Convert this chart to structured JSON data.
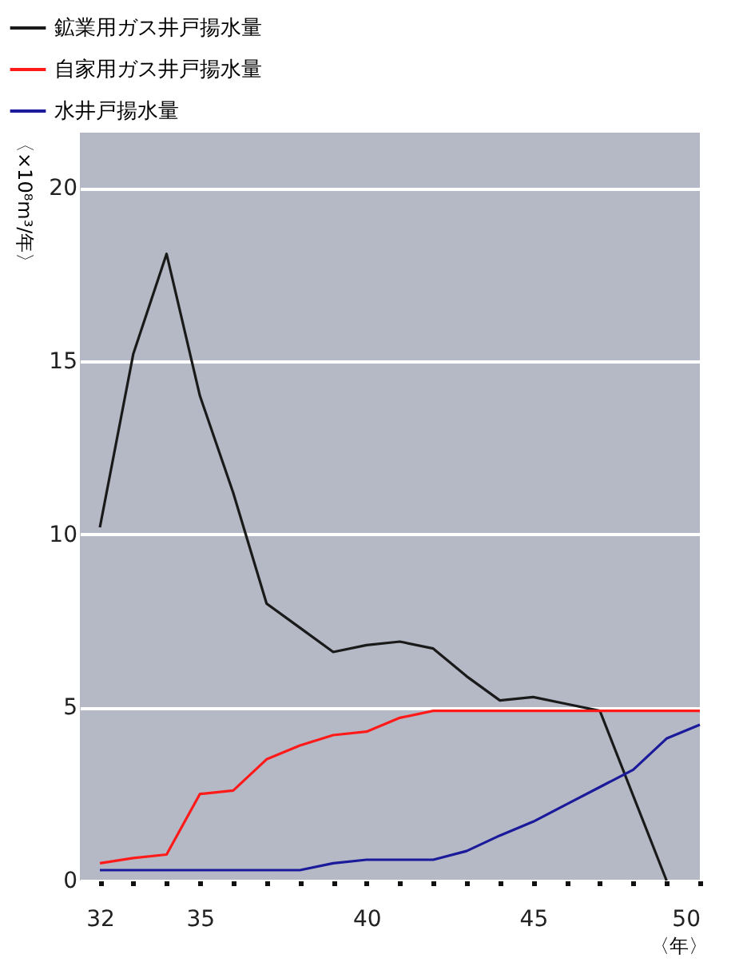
{
  "chart_data": {
    "type": "line",
    "ylabel": "〈×10⁸m³/年〉",
    "xlabel": "〈年〉",
    "xlim": [
      31.4,
      50
    ],
    "xticks": [
      32,
      {
        "value": 33,
        "label": null
      },
      {
        "value": 34,
        "label": null
      },
      35,
      {
        "value": 36,
        "label": null
      },
      {
        "value": 37,
        "label": null
      },
      {
        "value": 38,
        "label": null
      },
      {
        "value": 39,
        "label": null
      },
      40,
      {
        "value": 41,
        "label": null
      },
      {
        "value": 42,
        "label": null
      },
      {
        "value": 43,
        "label": null
      },
      {
        "value": 44,
        "label": null
      },
      45,
      {
        "value": 46,
        "label": null
      },
      {
        "value": 47,
        "label": null
      },
      {
        "value": 48,
        "label": null
      },
      {
        "value": 49,
        "label": null
      },
      50
    ],
    "ylim": [
      0,
      21.6
    ],
    "yticks": [
      0,
      5,
      10,
      15,
      20
    ],
    "grid": "y",
    "legend": "top left",
    "marker": "none",
    "line_style": "solid",
    "series": [
      {
        "name": "鉱業用ガス井戸揚水量",
        "color": "#1a1a1a",
        "x": [
          32,
          33,
          34,
          35,
          36,
          37,
          38,
          39,
          40,
          41,
          42,
          43,
          44,
          45,
          46,
          47,
          49
        ],
        "values": [
          10.2,
          15.2,
          18.1,
          14,
          11.2,
          8,
          7.3,
          6.6,
          6.8,
          6.9,
          6.7,
          5.9,
          5.2,
          5.3,
          5.1,
          4.9,
          0
        ]
      },
      {
        "name": "自家用ガス井戸揚水量",
        "color": "#ff1a1a",
        "x": [
          32,
          33,
          34,
          35,
          36,
          37,
          38,
          39,
          40,
          41,
          42,
          43,
          44,
          45,
          46,
          47,
          48,
          49,
          50
        ],
        "values": [
          0.5,
          0.65,
          0.75,
          2.5,
          2.6,
          3.5,
          3.9,
          4.2,
          4.3,
          4.7,
          4.9,
          4.9,
          4.9,
          4.9,
          4.9,
          4.9,
          4.9,
          4.9,
          4.9
        ]
      },
      {
        "name": "水井戸揚水量",
        "color": "#1a1a9a",
        "x": [
          32,
          33,
          34,
          35,
          36,
          37,
          38,
          39,
          40,
          41,
          42,
          43,
          44,
          45,
          46,
          47,
          48,
          49,
          50
        ],
        "values": [
          0.3,
          0.3,
          0.3,
          0.3,
          0.3,
          0.3,
          0.3,
          0.5,
          0.6,
          0.6,
          0.6,
          0.85,
          1.3,
          1.7,
          2.2,
          2.7,
          3.2,
          4.1,
          4.5
        ]
      }
    ]
  }
}
